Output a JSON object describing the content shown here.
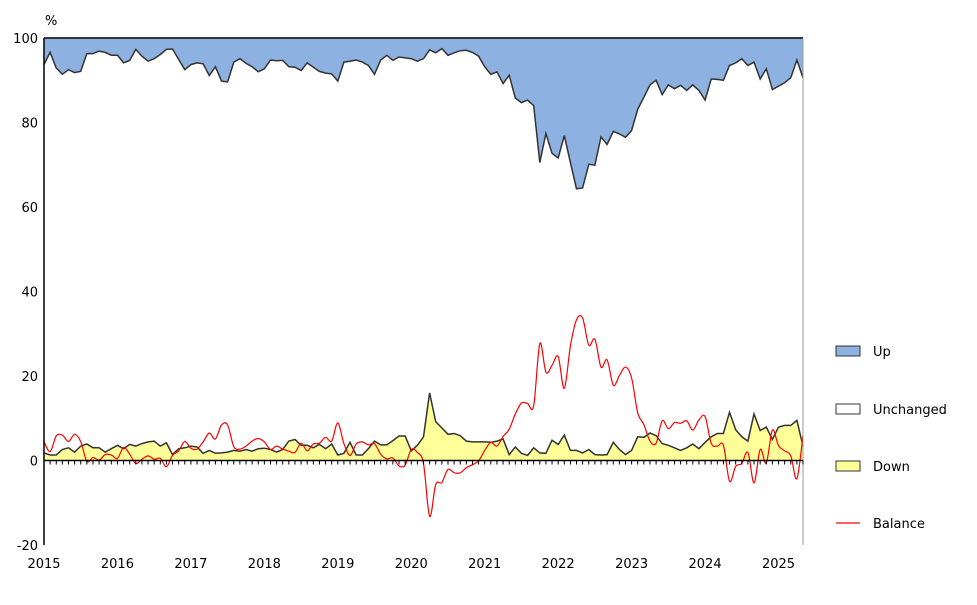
{
  "chart_data": {
    "type": "area",
    "ylabel": "%",
    "ylim": [
      -20,
      100
    ],
    "yticks": [
      "100",
      "80",
      "60",
      "40",
      "20",
      "0",
      "-20"
    ],
    "x_start": "2015-01",
    "x_frequency": "monthly",
    "xticks": [
      "2015",
      "2016",
      "2017",
      "2018",
      "2019",
      "2020",
      "2021",
      "2022",
      "2023",
      "2024",
      "2025"
    ],
    "legend_position": "right",
    "legend": [
      {
        "key": "up",
        "label": "Up",
        "color": "#8db1e0"
      },
      {
        "key": "unchanged",
        "label": "Unchanged",
        "color": "#ffffff"
      },
      {
        "key": "down",
        "label": "Down",
        "color": "#ffff99"
      },
      {
        "key": "balance",
        "label": "Balance",
        "color": "#ff0000"
      }
    ],
    "series": [
      {
        "name": "Up",
        "values": [
          6.3,
          3.4,
          7.1,
          8.6,
          7.5,
          8.2,
          7.9,
          3.7,
          3.7,
          3.1,
          3.4,
          4.1,
          4.1,
          5.9,
          5.3,
          2.7,
          4.3,
          5.5,
          4.9,
          3.9,
          2.7,
          2.6,
          5.1,
          7.5,
          6.3,
          5.9,
          6.1,
          8.9,
          6.8,
          10.2,
          10.4,
          5.7,
          4.9,
          6.0,
          6.8,
          8.0,
          7.3,
          5.2,
          5.4,
          5.3,
          6.8,
          6.9,
          7.7,
          5.9,
          6.9,
          7.9,
          8.3,
          8.5,
          10.2,
          5.7,
          5.5,
          5.2,
          5.7,
          6.5,
          8.6,
          5.2,
          4.1,
          5.3,
          4.5,
          4.7,
          4.9,
          5.5,
          4.9,
          2.8,
          3.5,
          2.5,
          4.1,
          3.5,
          3.0,
          2.9,
          3.4,
          4.3,
          6.8,
          8.6,
          8.0,
          10.8,
          8.8,
          14.2,
          15.3,
          14.7,
          16.0,
          29.5,
          22.6,
          27.3,
          28.4,
          23.1,
          29.5,
          35.7,
          35.5,
          29.9,
          30.1,
          23.4,
          25.2,
          22.1,
          22.7,
          23.5,
          21.9,
          16.9,
          14.0,
          11.1,
          10.0,
          13.4,
          11.1,
          12.0,
          11.2,
          12.4,
          11.1,
          12.4,
          14.7,
          9.7,
          9.8,
          10.0,
          6.5,
          5.9,
          4.9,
          6.5,
          5.7,
          9.7,
          7.3,
          12.2,
          11.4,
          10.6,
          9.4,
          5.2,
          9.4
        ]
      },
      {
        "name": "Down",
        "values": [
          1.8,
          1.3,
          1.3,
          2.6,
          3.0,
          2.0,
          3.4,
          3.9,
          3.0,
          3.0,
          2.0,
          2.8,
          3.6,
          2.8,
          3.8,
          3.4,
          4.0,
          4.4,
          4.6,
          3.4,
          4.2,
          1.4,
          2.8,
          3.0,
          3.4,
          3.2,
          1.7,
          2.4,
          1.7,
          1.8,
          2.0,
          2.4,
          2.2,
          2.6,
          2.2,
          2.8,
          2.9,
          2.6,
          2.0,
          2.6,
          4.6,
          5.0,
          3.6,
          3.6,
          3.0,
          3.8,
          2.8,
          3.9,
          1.3,
          1.7,
          4.3,
          1.3,
          1.3,
          2.8,
          4.6,
          3.7,
          3.7,
          4.7,
          5.8,
          5.8,
          2.3,
          3.6,
          5.6,
          16.0,
          9.2,
          7.7,
          6.2,
          6.4,
          5.9,
          4.6,
          4.4,
          4.4,
          4.4,
          4.3,
          4.6,
          5.1,
          1.4,
          3.2,
          1.7,
          1.2,
          3.0,
          1.8,
          1.7,
          4.8,
          3.8,
          6.0,
          2.4,
          2.4,
          1.8,
          2.6,
          1.4,
          1.3,
          1.4,
          4.3,
          2.6,
          1.4,
          2.4,
          5.6,
          5.5,
          6.5,
          5.9,
          4.0,
          3.6,
          3.0,
          2.4,
          3.0,
          3.9,
          2.8,
          4.3,
          5.6,
          6.4,
          6.4,
          11.4,
          7.3,
          5.6,
          4.6,
          11.0,
          7.1,
          7.9,
          5.0,
          7.9,
          8.3,
          8.3,
          9.5,
          3.4
        ]
      }
    ]
  }
}
